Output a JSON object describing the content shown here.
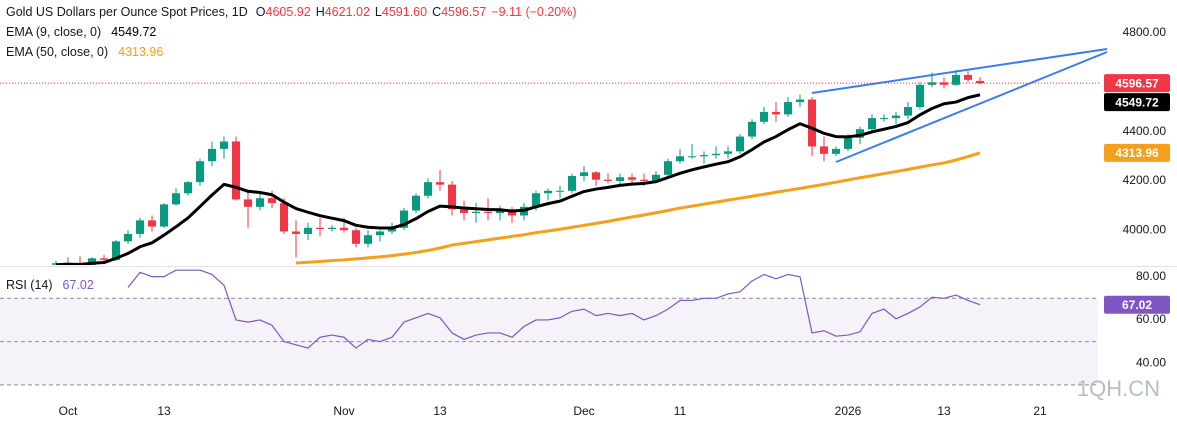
{
  "chart_data": {
    "type": "candlestick",
    "title": "Gold US Dollars per Ounce Spot Prices, 1D",
    "ohlc_header": {
      "letters": [
        "O",
        "H",
        "L",
        "C"
      ],
      "values": [
        "4605.92",
        "4621.02",
        "4591.60",
        "4596.57"
      ],
      "change": "−9.11 (−0.20%)"
    },
    "categories": [
      null,
      "Oct",
      null,
      null,
      null,
      null,
      null,
      null,
      null,
      "13",
      null,
      null,
      null,
      null,
      null,
      null,
      null,
      null,
      null,
      null,
      null,
      null,
      null,
      null,
      "Nov",
      null,
      null,
      null,
      null,
      null,
      null,
      null,
      "13",
      null,
      null,
      null,
      null,
      null,
      null,
      null,
      null,
      null,
      null,
      null,
      "Dec",
      null,
      null,
      null,
      null,
      null,
      null,
      null,
      "11",
      null,
      null,
      null,
      null,
      null,
      null,
      null,
      null,
      null,
      null,
      null,
      null,
      null,
      "2026",
      null,
      null,
      null,
      null,
      null,
      null,
      null,
      "13",
      null,
      null,
      null,
      null,
      null,
      null,
      null,
      "21",
      null,
      null,
      null
    ],
    "open": [
      3860,
      3866,
      3868,
      3858,
      3886,
      3880,
      3955,
      3985,
      4040,
      4015,
      4105,
      4150,
      4195,
      4280,
      4330,
      4360,
      4125,
      4095,
      4130,
      4110,
      3995,
      3985,
      4010,
      4005,
      4010,
      4000,
      3945,
      3980,
      3995,
      4010,
      4080,
      4140,
      4195,
      4185,
      4085,
      4070,
      4075,
      4070,
      4080,
      4060,
      4095,
      4150,
      4160,
      4160,
      4220,
      4235,
      4205,
      4200,
      4215,
      4205,
      4200,
      4225,
      4280,
      4300,
      4300,
      4305,
      4310,
      4320,
      4380,
      4440,
      4480,
      4470,
      4520,
      4530,
      4340,
      4310,
      4330,
      4375,
      4410,
      4455,
      4455,
      4465,
      4500,
      4590,
      4600,
      4590,
      4630,
      4605.92,
      null,
      null,
      null,
      null,
      null,
      null,
      null,
      null
    ],
    "high": [
      3875,
      3890,
      3895,
      3890,
      3900,
      3960,
      4000,
      4050,
      4060,
      4110,
      4170,
      4200,
      4290,
      4360,
      4380,
      4380,
      4160,
      4150,
      4160,
      4130,
      4040,
      4030,
      4050,
      4020,
      4050,
      4010,
      4000,
      4000,
      4030,
      4090,
      4150,
      4210,
      4245,
      4200,
      4120,
      4110,
      4130,
      4100,
      4095,
      4110,
      4160,
      4170,
      4180,
      4230,
      4260,
      4240,
      4230,
      4230,
      4230,
      4230,
      4240,
      4290,
      4330,
      4350,
      4320,
      4340,
      4340,
      4390,
      4450,
      4500,
      4520,
      4540,
      4550,
      4540,
      4380,
      4340,
      4390,
      4420,
      4470,
      4470,
      4480,
      4520,
      4600,
      4640,
      4620,
      4650,
      4645,
      4621.02,
      null,
      null,
      null,
      null,
      null,
      null,
      null,
      null
    ],
    "low": [
      3850,
      3855,
      3850,
      3850,
      3870,
      3875,
      3945,
      3970,
      3995,
      4010,
      4100,
      4140,
      4180,
      4260,
      4290,
      4120,
      4010,
      4080,
      4090,
      3985,
      3890,
      3960,
      3975,
      3995,
      3990,
      3930,
      3930,
      3955,
      3985,
      4000,
      4070,
      4130,
      4160,
      4060,
      4040,
      4030,
      4040,
      4040,
      4030,
      4040,
      4080,
      4120,
      4130,
      4150,
      4200,
      4180,
      4190,
      4180,
      4190,
      4180,
      4190,
      4210,
      4270,
      4290,
      4270,
      4290,
      4290,
      4310,
      4370,
      4430,
      4440,
      4460,
      4500,
      4300,
      4280,
      4300,
      4320,
      4350,
      4400,
      4440,
      4430,
      4450,
      4490,
      4580,
      4575,
      4585,
      4600,
      4591.6,
      null,
      null,
      null,
      null,
      null,
      null,
      null,
      null
    ],
    "close": [
      3866,
      3868,
      3858,
      3886,
      3880,
      3955,
      3985,
      4040,
      4015,
      4105,
      4150,
      4195,
      4280,
      4330,
      4360,
      4125,
      4095,
      4130,
      4110,
      3995,
      3985,
      4010,
      4005,
      4010,
      4000,
      3945,
      3980,
      3995,
      4010,
      4080,
      4140,
      4195,
      4185,
      4085,
      4070,
      4075,
      4070,
      4080,
      4060,
      4095,
      4150,
      4160,
      4160,
      4220,
      4235,
      4205,
      4200,
      4215,
      4205,
      4200,
      4225,
      4280,
      4300,
      4300,
      4305,
      4310,
      4320,
      4380,
      4440,
      4480,
      4470,
      4520,
      4530,
      4340,
      4310,
      4330,
      4375,
      4410,
      4455,
      4455,
      4465,
      4500,
      4590,
      4600,
      4590,
      4630,
      4610,
      4596.57,
      null,
      null,
      null,
      null,
      null,
      null,
      null,
      null
    ],
    "up_color": "#089981",
    "down_color": "#f23645",
    "series": [
      {
        "name": "EMA (9, close, 0)",
        "color": "#000000",
        "values": [
          3860,
          3862,
          3861,
          3866,
          3869,
          3886,
          3906,
          3933,
          3949,
          3980,
          4014,
          4050,
          4096,
          4143,
          4186,
          4174,
          4158,
          4153,
          4144,
          4114,
          4088,
          4073,
          4059,
          4049,
          4039,
          4020,
          4012,
          4009,
          4009,
          4023,
          4047,
          4076,
          4098,
          4095,
          4090,
          4087,
          4084,
          4083,
          4078,
          4081,
          4095,
          4108,
          4118,
          4138,
          4157,
          4167,
          4174,
          4182,
          4187,
          4190,
          4197,
          4214,
          4231,
          4245,
          4257,
          4268,
          4278,
          4298,
          4327,
          4358,
          4380,
          4408,
          4432,
          4414,
          4393,
          4380,
          4379,
          4385,
          4399,
          4410,
          4421,
          4437,
          4468,
          4494,
          4513,
          4520,
          4538,
          4549.72,
          null,
          null,
          null,
          null,
          null,
          null,
          null,
          null
        ]
      },
      {
        "name": "EMA (50, close, 0)",
        "color": "#f59f1b",
        "values": [
          null,
          null,
          null,
          null,
          null,
          null,
          null,
          null,
          null,
          null,
          null,
          null,
          null,
          null,
          null,
          null,
          null,
          null,
          null,
          null,
          3867,
          3870,
          3873,
          3877,
          3880,
          3884,
          3888,
          3892,
          3897,
          3903,
          3910,
          3918,
          3928,
          3940,
          3947,
          3954,
          3961,
          3968,
          3975,
          3982,
          3990,
          3997,
          4004,
          4012,
          4020,
          4028,
          4036,
          4045,
          4054,
          4062,
          4071,
          4080,
          4090,
          4098,
          4106,
          4114,
          4122,
          4130,
          4138,
          4146,
          4154,
          4162,
          4170,
          4178,
          4186,
          4195,
          4204,
          4213,
          4221,
          4230,
          4238,
          4247,
          4256,
          4265,
          4273,
          4285,
          4299,
          4313.96,
          null,
          null,
          null,
          null,
          null,
          null,
          null,
          null
        ]
      }
    ],
    "ylim": [
      3859,
      4934
    ],
    "yticks": [
      {
        "value": 4000,
        "label": "4000.00"
      },
      {
        "value": 4200,
        "label": "4200.00"
      },
      {
        "value": 4400,
        "label": "4400.00"
      },
      {
        "value": 4600,
        "label": "4600.00"
      },
      {
        "value": 4800,
        "label": "4800.00"
      }
    ],
    "rsi": {
      "name": "RSI (14)",
      "color": "#7e57c2",
      "values": [
        null,
        null,
        null,
        null,
        null,
        null,
        75,
        82,
        80,
        80,
        83,
        83,
        83,
        81,
        76,
        60,
        59,
        60,
        57.5,
        50,
        48.5,
        47,
        52,
        53,
        52,
        47,
        51,
        50,
        52,
        59,
        61,
        63,
        61,
        54,
        51,
        53,
        54,
        54,
        52,
        57,
        60,
        60,
        61,
        64,
        65,
        62,
        63,
        62,
        63,
        60,
        62,
        65,
        69,
        69,
        70,
        70,
        72,
        73,
        78,
        81,
        79,
        81,
        80,
        54,
        55,
        52.5,
        53,
        54.5,
        63,
        65,
        60.5,
        63,
        66,
        70.5,
        70,
        71.5,
        69,
        67.02,
        null,
        null,
        null,
        null,
        null,
        null,
        null,
        null
      ],
      "ylim": [
        23,
        84
      ],
      "yticks": [
        {
          "value": 40,
          "label": "40.00"
        },
        {
          "value": 60,
          "label": "60.00"
        },
        {
          "value": 80,
          "label": "80.00"
        }
      ],
      "levels": [
        70,
        50,
        30
      ]
    },
    "watermark": "1QH.CN"
  }
}
